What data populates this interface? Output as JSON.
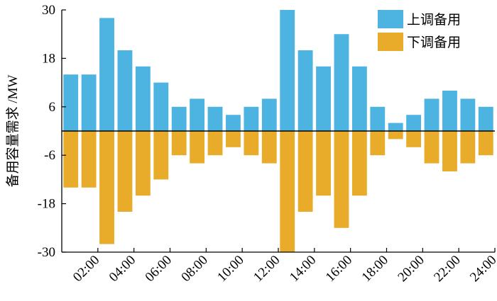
{
  "chart_data": {
    "type": "bar",
    "xlabel": "",
    "ylabel": "备用容量需求 /MW",
    "ylim": [
      -30,
      30
    ],
    "yticks": [
      -30,
      -18,
      -6,
      6,
      18,
      30
    ],
    "x": [
      1,
      2,
      3,
      4,
      5,
      6,
      7,
      8,
      9,
      10,
      11,
      12,
      13,
      14,
      15,
      16,
      17,
      18,
      19,
      20,
      21,
      22,
      23,
      24
    ],
    "x_ticks": [
      2,
      4,
      6,
      8,
      10,
      12,
      14,
      16,
      18,
      20,
      22,
      24
    ],
    "x_tick_labels": [
      "02:00",
      "04:00",
      "06:00",
      "08:00",
      "10:00",
      "12:00",
      "14:00",
      "16:00",
      "18:00",
      "20:00",
      "22:00",
      "24:00"
    ],
    "grid": false,
    "legend": "top-right",
    "series": [
      {
        "name": "上调备用",
        "color": "#4db3e0",
        "values": [
          14,
          14,
          28,
          20,
          16,
          12,
          6,
          8,
          6,
          4,
          6,
          8,
          30,
          20,
          16,
          24,
          16,
          6,
          2,
          4,
          8,
          10,
          8,
          6
        ]
      },
      {
        "name": "下调备用",
        "color": "#e8ac2a",
        "values": [
          -14,
          -14,
          -28,
          -20,
          -16,
          -12,
          -6,
          -8,
          -6,
          -4,
          -6,
          -8,
          -30,
          -20,
          -16,
          -24,
          -16,
          -6,
          -2,
          -4,
          -8,
          -10,
          -8,
          -6
        ]
      }
    ]
  }
}
